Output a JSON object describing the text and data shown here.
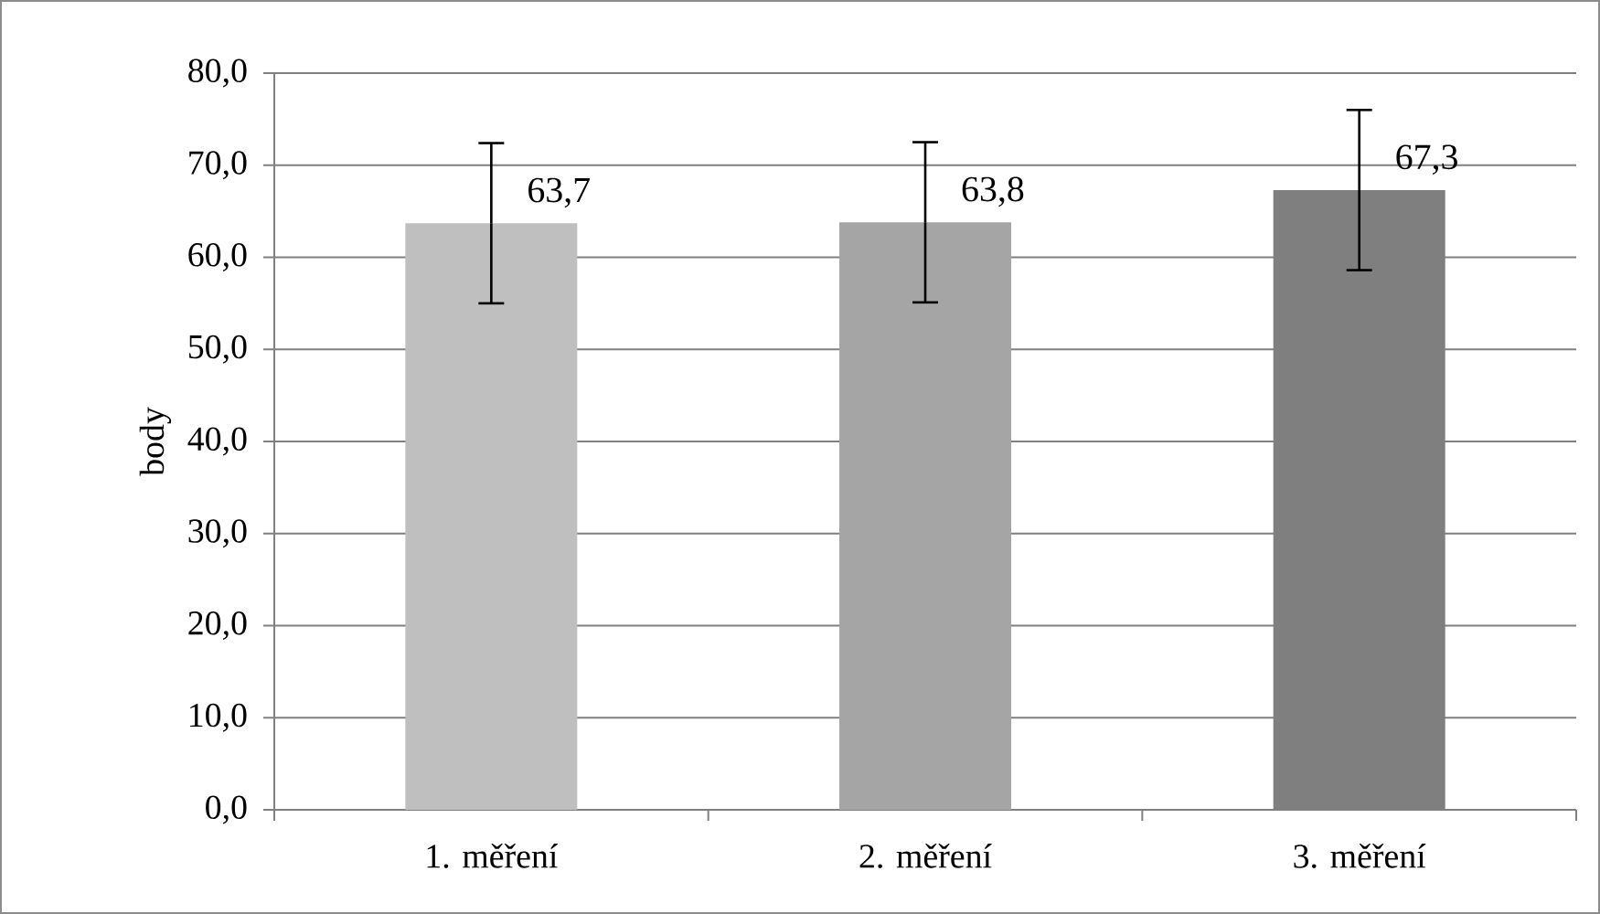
{
  "chart_data": {
    "type": "bar",
    "ylabel": "body",
    "categories": [
      "1. měření",
      "2. měření",
      "3. měření"
    ],
    "values": [
      63.7,
      63.8,
      67.3
    ],
    "errors": [
      8.7,
      8.7,
      8.7
    ],
    "value_labels": [
      "63,7",
      "63,8",
      "67,3"
    ],
    "colors": [
      "#bfbfbf",
      "#a5a5a5",
      "#7f7f7f"
    ],
    "ylim": [
      0,
      80
    ],
    "yticks": [
      {
        "value": 0,
        "label": "0,0"
      },
      {
        "value": 10,
        "label": "10,0"
      },
      {
        "value": 20,
        "label": "20,0"
      },
      {
        "value": 30,
        "label": "30,0"
      },
      {
        "value": 40,
        "label": "40,0"
      },
      {
        "value": 50,
        "label": "50,0"
      },
      {
        "value": 60,
        "label": "60,0"
      },
      {
        "value": 70,
        "label": "70,0"
      },
      {
        "value": 80,
        "label": "80,0"
      }
    ],
    "grid": "y"
  }
}
